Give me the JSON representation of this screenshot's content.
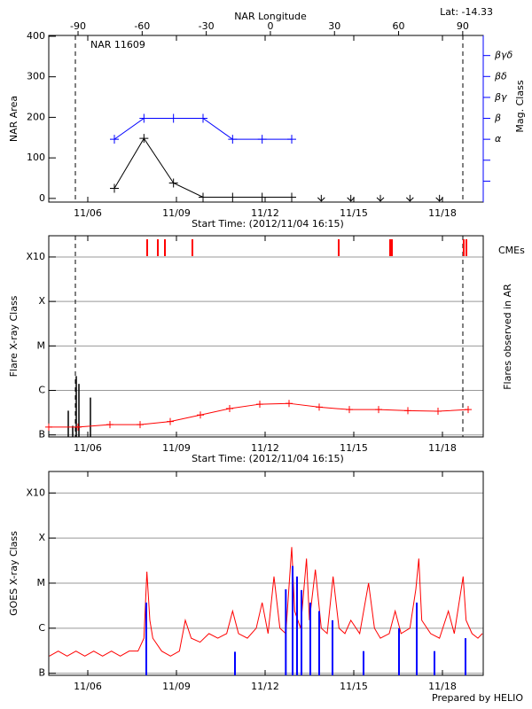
{
  "chart_data": [
    {
      "type": "nar",
      "title": "NAR 11609",
      "annotation": "Lat: -14.33",
      "x_label": "Start Time: (2012/11/04 16:15)",
      "x2_label": "NAR Longitude",
      "y_label": "NAR Area",
      "y2_label": "Mag. Class",
      "xlim": [
        4.68,
        19.38
      ],
      "xticks": [
        {
          "value": 6,
          "label": "11/06"
        },
        {
          "value": 9,
          "label": "11/09"
        },
        {
          "value": 12,
          "label": "11/12"
        },
        {
          "value": 15,
          "label": "11/15"
        },
        {
          "value": 18,
          "label": "11/18"
        }
      ],
      "x2lim": [
        -103.7,
        99.6
      ],
      "x2ticks": [
        -90,
        -60,
        -30,
        0,
        30,
        60,
        90
      ],
      "ylim": [
        -9,
        402
      ],
      "yticks": [
        0,
        100,
        200,
        300,
        400
      ],
      "y2lim": [
        -2,
        5.96
      ],
      "y2ticks": [
        {
          "value": 1,
          "label": "α"
        },
        {
          "value": 2,
          "label": "β"
        },
        {
          "value": 3,
          "label": "βγ"
        },
        {
          "value": 4,
          "label": "βδ"
        },
        {
          "value": 5,
          "label": "βγδ"
        }
      ],
      "y2minor": [
        -1,
        0
      ],
      "y2color": "#0000ff",
      "dashed_x": [
        5.58,
        18.69
      ],
      "series": [
        {
          "color": "#000000",
          "x": [
            6.9,
            7.9,
            8.9,
            9.9,
            10.9,
            11.9,
            12.9
          ],
          "values": [
            25,
            148,
            38,
            3,
            3,
            3,
            3
          ]
        },
        {
          "color": "#0000ff",
          "axis": "y2",
          "x": [
            6.9,
            7.9,
            8.9,
            9.9,
            10.9,
            11.9,
            12.9
          ],
          "values": [
            1,
            2,
            2,
            2,
            1,
            1,
            1
          ]
        }
      ],
      "limits": {
        "color": "#000000",
        "x": [
          13.9,
          14.9,
          15.9,
          16.9,
          17.9
        ],
        "values": [
          0,
          0,
          0,
          0,
          0
        ]
      }
    },
    {
      "type": "flare",
      "x_label": "Start Time: (2012/11/04 16:15)",
      "y_label": "Flare X-ray Class",
      "y2_label": "Flares observed in AR",
      "log_scale": true,
      "grid": true,
      "xlim": [
        4.68,
        19.38
      ],
      "xticks": [
        {
          "value": 6,
          "label": "11/06"
        },
        {
          "value": 9,
          "label": "11/09"
        },
        {
          "value": 12,
          "label": "11/12"
        },
        {
          "value": 15,
          "label": "11/15"
        },
        {
          "value": 18,
          "label": "11/18"
        }
      ],
      "ylim": [
        9e-08,
        0.003
      ],
      "yticks": [
        {
          "value": 1e-07,
          "label": "B"
        },
        {
          "value": 1e-06,
          "label": "C"
        },
        {
          "value": 1e-05,
          "label": "M"
        },
        {
          "value": 0.0001,
          "label": "X"
        },
        {
          "value": 0.001,
          "label": "X10"
        }
      ],
      "dashed_x": [
        5.58,
        18.69
      ],
      "background": {
        "color": "#ff0000",
        "x": [
          4.68,
          5.67,
          6.75,
          7.77,
          8.79,
          9.81,
          10.8,
          11.82,
          12.81,
          13.83,
          14.85,
          15.84,
          16.83,
          17.85,
          18.87
        ],
        "values": [
          1.5e-07,
          1.5e-07,
          1.7e-07,
          1.7e-07,
          2e-07,
          2.8e-07,
          3.9e-07,
          4.9e-07,
          5.1e-07,
          4.2e-07,
          3.7e-07,
          3.7e-07,
          3.5e-07,
          3.4e-07,
          3.7e-07
        ]
      },
      "flares": {
        "color": "#000000",
        "x": [
          5.34,
          5.49,
          5.61,
          5.7,
          6.09
        ],
        "values": [
          3.5e-07,
          1.6e-07,
          2.1e-06,
          1.4e-06,
          6.9e-07
        ]
      },
      "cmes": {
        "label": "CMEs",
        "color": "#ff0000",
        "x": [
          8.01,
          8.37,
          8.61,
          9.54,
          14.49,
          16.23,
          16.29,
          18.72,
          18.81
        ]
      }
    },
    {
      "type": "goes",
      "y_label": "GOES X-ray Class",
      "footer": "Prepared by HELIO",
      "log_scale": true,
      "grid": true,
      "xlim": [
        4.68,
        19.38
      ],
      "xticks": [
        {
          "value": 6,
          "label": "11/06"
        },
        {
          "value": 9,
          "label": "11/09"
        },
        {
          "value": 12,
          "label": "11/12"
        },
        {
          "value": 15,
          "label": "11/15"
        },
        {
          "value": 18,
          "label": "11/18"
        }
      ],
      "ylim": [
        9e-08,
        0.003
      ],
      "yticks": [
        {
          "value": 1e-07,
          "label": "B"
        },
        {
          "value": 1e-06,
          "label": "C"
        },
        {
          "value": 1e-05,
          "label": "M"
        },
        {
          "value": 0.0001,
          "label": "X"
        },
        {
          "value": 0.001,
          "label": "X10"
        }
      ],
      "series": [
        {
          "color": "#ff0000",
          "x": [
            4.7,
            5.0,
            5.3,
            5.6,
            5.9,
            6.2,
            6.5,
            6.8,
            7.1,
            7.4,
            7.7,
            7.9,
            8.0,
            8.1,
            8.2,
            8.5,
            8.8,
            9.1,
            9.3,
            9.5,
            9.8,
            10.1,
            10.4,
            10.7,
            10.9,
            11.1,
            11.4,
            11.7,
            11.9,
            12.1,
            12.3,
            12.5,
            12.7,
            12.9,
            13.0,
            13.2,
            13.4,
            13.5,
            13.7,
            13.9,
            14.1,
            14.3,
            14.5,
            14.7,
            14.9,
            15.2,
            15.5,
            15.7,
            15.9,
            16.2,
            16.4,
            16.6,
            16.9,
            17.1,
            17.2,
            17.3,
            17.6,
            17.9,
            18.2,
            18.4,
            18.7,
            18.8,
            19.0,
            19.2,
            19.35
          ],
          "values": [
            2.4e-07,
            3.1e-07,
            2.4e-07,
            3.1e-07,
            2.4e-07,
            3.1e-07,
            2.4e-07,
            3.1e-07,
            2.4e-07,
            3.1e-07,
            3.1e-07,
            6e-07,
            1.8e-05,
            1.5e-06,
            6e-07,
            3.1e-07,
            2.4e-07,
            3.1e-07,
            1.5e-06,
            6e-07,
            4.9e-07,
            7.6e-07,
            6e-07,
            7.6e-07,
            2.4e-06,
            7.6e-07,
            6e-07,
            1e-06,
            3.7e-06,
            7.6e-07,
            1.4e-05,
            1e-06,
            7.6e-07,
            6.3e-05,
            2.4e-06,
            1e-06,
            3.5e-05,
            1.5e-06,
            2e-05,
            1e-06,
            7.6e-07,
            1.4e-05,
            1e-06,
            7.6e-07,
            1.5e-06,
            7.6e-07,
            1e-05,
            1e-06,
            6e-07,
            7.6e-07,
            2.4e-06,
            7.6e-07,
            1e-06,
            7.3e-06,
            3.5e-05,
            1.5e-06,
            7.6e-07,
            6e-07,
            2.4e-06,
            7.6e-07,
            1.4e-05,
            1.5e-06,
            7.6e-07,
            6e-07,
            7.6e-07
          ]
        },
        {
          "color": "#0000ff",
          "style": "stem",
          "x": [
            7.98,
            10.98,
            12.7,
            12.93,
            13.08,
            13.23,
            13.53,
            13.83,
            14.28,
            15.33,
            16.53,
            17.13,
            17.73,
            18.78
          ],
          "values": [
            3.7e-06,
            3e-07,
            7.3e-06,
            2.4e-05,
            1.4e-05,
            7e-06,
            3.7e-06,
            2.4e-06,
            1.5e-06,
            3.1e-07,
            1e-06,
            3.7e-06,
            3.1e-07,
            6e-07
          ]
        }
      ]
    }
  ]
}
